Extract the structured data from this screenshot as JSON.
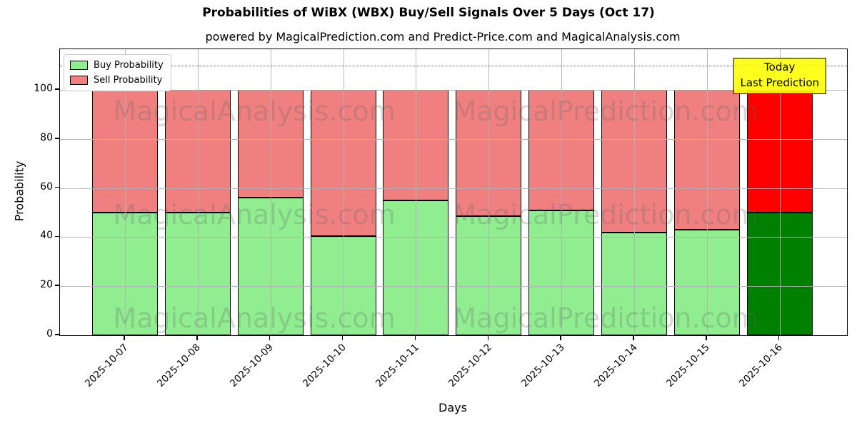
{
  "chart_data": {
    "type": "bar",
    "stacked": true,
    "title": "Probabilities of WiBX (WBX) Buy/Sell Signals Over 5 Days (Oct 17)",
    "subtitle": "powered by MagicalPrediction.com and Predict-Price.com and MagicalAnalysis.com",
    "xlabel": "Days",
    "ylabel": "Probability",
    "categories": [
      "2025-10-07",
      "2025-10-08",
      "2025-10-09",
      "2025-10-10",
      "2025-10-11",
      "2025-10-12",
      "2025-10-13",
      "2025-10-14",
      "2025-10-15",
      "2025-10-16"
    ],
    "series": [
      {
        "name": "Buy Probability",
        "color": "#90ee90",
        "values": [
          50,
          50,
          56,
          40.5,
          55,
          48.5,
          51,
          42,
          43,
          50
        ]
      },
      {
        "name": "Sell Probability",
        "color": "#f08080",
        "values": [
          50,
          50,
          44,
          59.5,
          45,
          51.5,
          49,
          58,
          57,
          50
        ]
      }
    ],
    "highlight_index": 9,
    "highlight_colors": {
      "buy": "#008000",
      "sell": "#ff0000"
    },
    "bar_edge_color": "#000000",
    "yticks": [
      0,
      20,
      40,
      60,
      80,
      100
    ],
    "ylim": [
      0,
      116.6
    ],
    "dashed_line_y": 110,
    "grid": true,
    "legend_position": "upper-left",
    "annotation": {
      "lines": [
        "Today",
        "Last Prediction"
      ],
      "bg_color": "#ffff00"
    },
    "watermarks": {
      "left_text": "MagicalAnalysis.com",
      "right_text": "MagicalPrediction.com",
      "rows": 3
    }
  }
}
